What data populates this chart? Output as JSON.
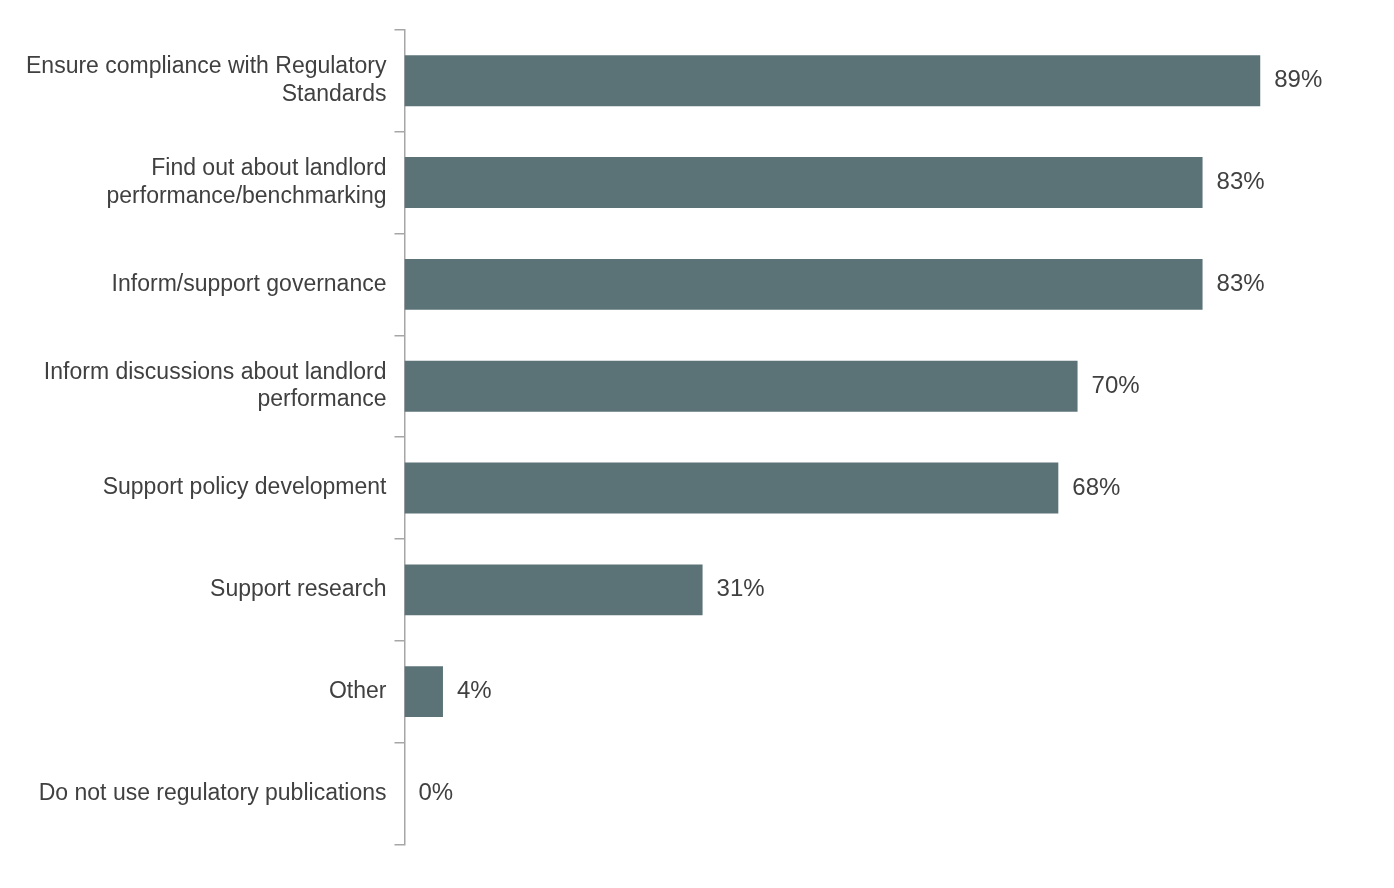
{
  "chart_data": {
    "type": "bar",
    "orientation": "horizontal",
    "categories": [
      "Ensure compliance with Regulatory Standards",
      "Find out about landlord performance/benchmarking",
      "Inform/support governance",
      "Inform discussions about landlord performance",
      "Support policy development",
      "Support research",
      "Other",
      "Do not use regulatory publications"
    ],
    "values": [
      89,
      83,
      83,
      70,
      68,
      31,
      4,
      0
    ],
    "value_labels": [
      "89%",
      "83%",
      "83%",
      "70%",
      "68%",
      "31%",
      "4%",
      "0%"
    ],
    "color": "#5b7377",
    "grid": false,
    "legend": false,
    "tick_labels": "y"
  }
}
